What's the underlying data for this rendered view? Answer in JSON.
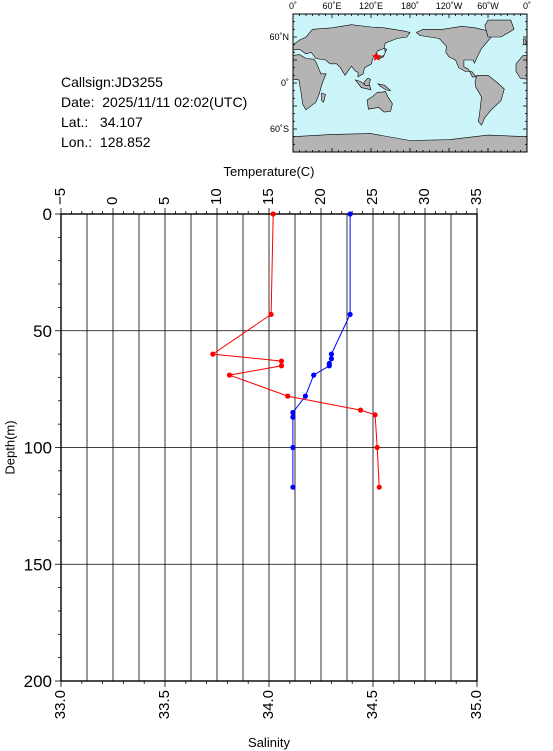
{
  "station": {
    "callsign": "Callsign:JD3255",
    "date": "Date:  2025/11/11 02:02(UTC)",
    "lat": "Lat.:   34.107",
    "lon": "Lon.:  128.852"
  },
  "map": {
    "lon_ticks": [
      "0˚",
      "60˚E",
      "120˚E",
      "180˚",
      "120˚W",
      "60˚W",
      "0˚"
    ],
    "lat_ticks": [
      "60˚N",
      "0˚",
      "60˚S"
    ],
    "ocean_color": "#ccf5fa",
    "land_color": "#b4b4b4",
    "marker_color": "#ff0000",
    "marker": {
      "lon": 128.852,
      "lat": 34.107
    }
  },
  "chart_data": {
    "type": "line",
    "xlabel_top": "Temperature(C)",
    "xlabel_bottom": "Salinity",
    "ylabel": "Depth(m)",
    "temperature_range": [
      -5,
      35
    ],
    "temperature_ticks": [
      "−5",
      "0",
      "5",
      "10",
      "15",
      "20",
      "25",
      "30",
      "35"
    ],
    "salinity_range": [
      33.0,
      35.0
    ],
    "salinity_ticks": [
      "33.0",
      "33.5",
      "34.0",
      "34.5",
      "35.0"
    ],
    "depth_range": [
      0,
      200
    ],
    "depth_ticks": [
      "0",
      "50",
      "100",
      "150",
      "200"
    ],
    "grid": true,
    "series": [
      {
        "axis": "temperature",
        "color": "#0000ff",
        "points": [
          [
            22.8,
            0
          ],
          [
            22.8,
            43
          ],
          [
            21.0,
            60
          ],
          [
            21.0,
            62
          ],
          [
            20.8,
            64
          ],
          [
            20.8,
            65
          ],
          [
            19.3,
            69
          ],
          [
            18.5,
            78
          ],
          [
            17.3,
            85
          ],
          [
            17.3,
            87
          ],
          [
            17.3,
            100
          ],
          [
            17.3,
            117
          ]
        ]
      },
      {
        "axis": "salinity",
        "color": "#ff0000",
        "points": [
          [
            34.02,
            0
          ],
          [
            34.01,
            43
          ],
          [
            33.73,
            60
          ],
          [
            34.06,
            63
          ],
          [
            34.06,
            65
          ],
          [
            33.81,
            69
          ],
          [
            34.09,
            78
          ],
          [
            34.44,
            84
          ],
          [
            34.51,
            86
          ],
          [
            34.52,
            100
          ],
          [
            34.53,
            117
          ]
        ]
      }
    ]
  }
}
